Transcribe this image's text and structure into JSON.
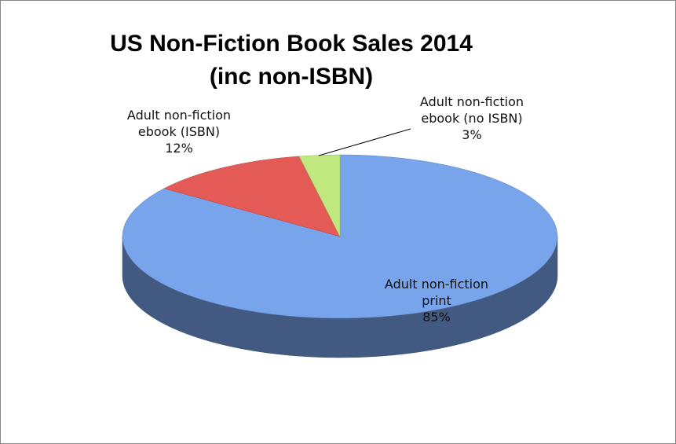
{
  "chart_data": {
    "type": "pie",
    "title": "US Non-Fiction Book Sales 2014 (inc non-ISBN)",
    "categories": [
      "Adult non-fiction print",
      "Adult non-fiction ebook (ISBN)",
      "Adult non-fiction ebook (no ISBN)"
    ],
    "values": [
      85,
      12,
      3
    ],
    "value_labels": [
      "85%",
      "12%",
      "3%"
    ],
    "colors": [
      "#78a4ec",
      "#e35a57",
      "#bfe87f"
    ]
  }
}
